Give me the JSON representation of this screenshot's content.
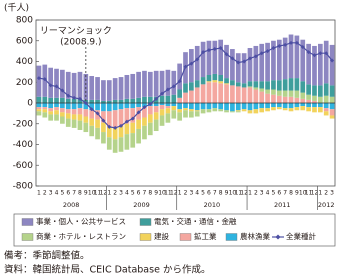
{
  "chart_data": {
    "type": "bar",
    "y_label": "(千人)",
    "ylim": [
      -800,
      800
    ],
    "yticks": [
      -800,
      -600,
      -400,
      -200,
      0,
      200,
      400,
      600,
      800
    ],
    "categories": [
      "1",
      "2",
      "3",
      "4",
      "5",
      "6",
      "7",
      "8",
      "9",
      "10",
      "11",
      "12",
      "1",
      "2",
      "3",
      "4",
      "5",
      "6",
      "7",
      "8",
      "9",
      "10",
      "11",
      "12",
      "1",
      "2",
      "3",
      "4",
      "5",
      "6",
      "7",
      "8",
      "9",
      "10",
      "11",
      "12",
      "1",
      "2",
      "3",
      "4",
      "5",
      "6",
      "7",
      "8",
      "9",
      "10",
      "11",
      "12",
      "1",
      "2",
      "3"
    ],
    "years": [
      "2008",
      "2009",
      "2010",
      "2011",
      "2012"
    ],
    "annotation": {
      "label": "リーマンショック",
      "date": "(2008.9.)"
    },
    "series": [
      {
        "name": "事業・個人・公共サービス",
        "type": "bar",
        "color": "#8d86c1",
        "values": [
          300,
          310,
          290,
          280,
          270,
          260,
          250,
          260,
          250,
          230,
          220,
          200,
          200,
          210,
          220,
          230,
          240,
          250,
          250,
          240,
          250,
          240,
          250,
          230,
          250,
          300,
          320,
          330,
          340,
          330,
          320,
          340,
          320,
          300,
          280,
          290,
          320,
          340,
          360,
          370,
          380,
          390,
          400,
          420,
          410,
          400,
          390,
          380,
          400,
          410,
          390
        ]
      },
      {
        "name": "電気・交通・通信・金融",
        "type": "bar",
        "color": "#3f9e9c",
        "values": [
          60,
          60,
          50,
          50,
          50,
          40,
          40,
          40,
          30,
          30,
          30,
          20,
          20,
          30,
          30,
          40,
          40,
          50,
          60,
          60,
          60,
          70,
          70,
          80,
          80,
          90,
          80,
          70,
          70,
          60,
          60,
          60,
          50,
          50,
          40,
          40,
          50,
          60,
          70,
          80,
          90,
          100,
          110,
          120,
          120,
          110,
          100,
          100,
          110,
          120,
          110
        ]
      },
      {
        "name": "商業・ホテル・レストラン",
        "type": "bar",
        "color": "#b5d38b",
        "values": [
          -40,
          -50,
          -60,
          -60,
          -70,
          -80,
          -80,
          -90,
          -90,
          -100,
          -110,
          -110,
          -120,
          -130,
          -140,
          -150,
          -140,
          -140,
          -130,
          -120,
          -110,
          -100,
          -90,
          -80,
          -80,
          -70,
          -60,
          -50,
          -40,
          -30,
          -30,
          -20,
          -20,
          -10,
          -10,
          0,
          10,
          20,
          30,
          40,
          50,
          50,
          60,
          60,
          70,
          60,
          50,
          50,
          60,
          70,
          60
        ]
      },
      {
        "name": "建設",
        "type": "bar",
        "color": "#f2d35c",
        "values": [
          -20,
          -30,
          -30,
          -40,
          -40,
          -50,
          -50,
          -60,
          -60,
          -70,
          -80,
          -90,
          -100,
          -110,
          -110,
          -100,
          -100,
          -90,
          -80,
          -80,
          -70,
          -60,
          -50,
          -40,
          -30,
          -20,
          -20,
          -10,
          0,
          10,
          20,
          20,
          10,
          0,
          -10,
          -20,
          -30,
          -40,
          -40,
          -30,
          -30,
          -20,
          -20,
          -30,
          -30,
          -40,
          -40,
          -50,
          -50,
          -40,
          -30
        ]
      },
      {
        "name": "鉱工業",
        "type": "bar",
        "color": "#f4a7a0",
        "values": [
          -20,
          -20,
          -30,
          -30,
          -40,
          -40,
          -50,
          -60,
          -70,
          -80,
          -90,
          -110,
          -150,
          -170,
          -160,
          -150,
          -140,
          -120,
          -100,
          -80,
          -60,
          -40,
          -20,
          0,
          50,
          100,
          120,
          150,
          180,
          200,
          200,
          190,
          180,
          170,
          160,
          150,
          150,
          130,
          110,
          90,
          80,
          70,
          60,
          60,
          50,
          40,
          30,
          20,
          0,
          -30,
          -60
        ]
      },
      {
        "name": "農林漁業",
        "type": "bar",
        "color": "#2fb3df",
        "values": [
          -40,
          -40,
          -50,
          -40,
          -50,
          -60,
          -60,
          -50,
          -60,
          -70,
          -70,
          -80,
          -80,
          -70,
          -60,
          -50,
          -50,
          -40,
          -40,
          -30,
          -30,
          -20,
          -30,
          -30,
          -60,
          -50,
          -60,
          -70,
          -60,
          -60,
          -50,
          -60,
          -70,
          -80,
          -70,
          -60,
          -70,
          -60,
          -50,
          -50,
          -40,
          -40,
          -50,
          -50,
          -40,
          -30,
          -40,
          -40,
          -40,
          -50,
          -60
        ]
      },
      {
        "name": "全業種計",
        "type": "line",
        "color": "#4d4fa3",
        "values": [
          240,
          230,
          170,
          160,
          120,
          70,
          50,
          40,
          0,
          -60,
          -100,
          -170,
          -230,
          -240,
          -220,
          -180,
          -150,
          -90,
          -40,
          -10,
          40,
          90,
          130,
          160,
          210,
          350,
          380,
          420,
          490,
          510,
          520,
          530,
          470,
          430,
          390,
          400,
          430,
          450,
          480,
          500,
          530,
          550,
          560,
          580,
          580,
          540,
          490,
          460,
          480,
          480,
          410
        ]
      }
    ],
    "notes": [
      "備考：季節調整値。",
      "資料：韓国統計局、CEIC Database から作成。"
    ]
  }
}
